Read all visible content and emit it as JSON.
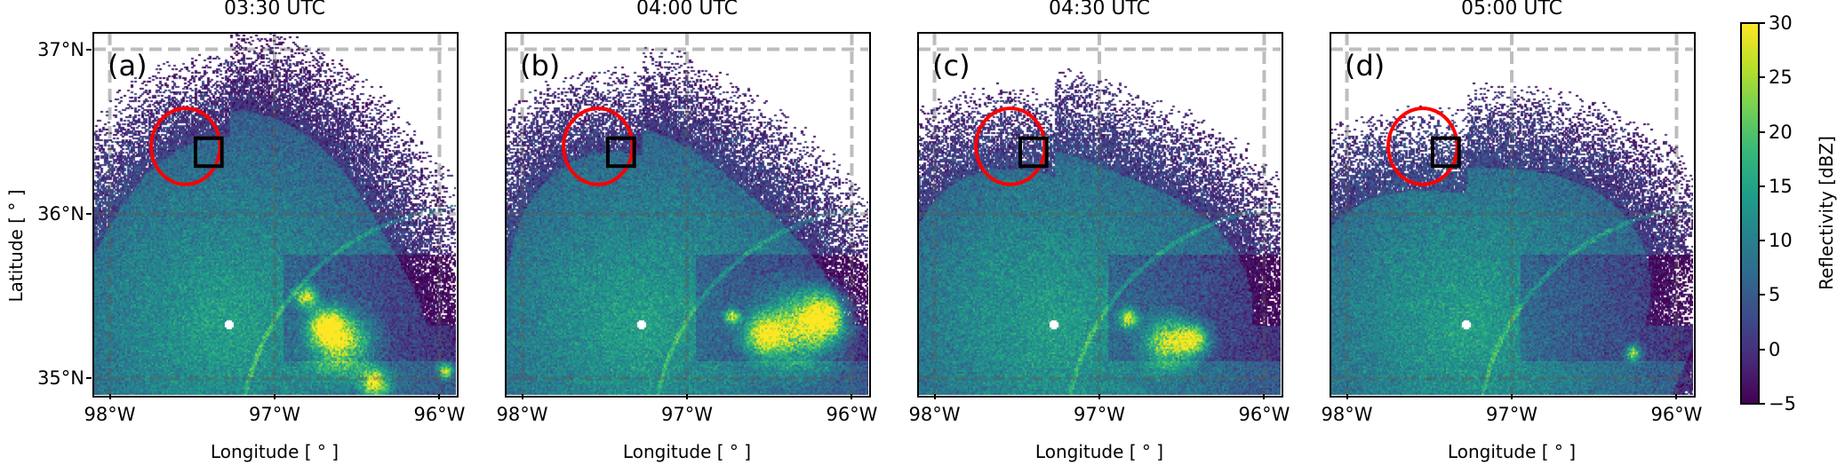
{
  "chart_data": {
    "type": "heatmap",
    "panels": [
      {
        "label": "(a)",
        "title": "03:30 UTC"
      },
      {
        "label": "(b)",
        "title": "04:00 UTC"
      },
      {
        "label": "(c)",
        "title": "04:30 UTC"
      },
      {
        "label": "(d)",
        "title": "05:00 UTC"
      }
    ],
    "xlabel": "Longitude [ ° ]",
    "ylabel": "Latitude [ ° ]",
    "xlim": [
      -98.1,
      -95.9
    ],
    "ylim": [
      34.9,
      37.1
    ],
    "x_ticks": [
      {
        "value": -98,
        "label": "98°W"
      },
      {
        "value": -97,
        "label": "97°W"
      },
      {
        "value": -96,
        "label": "96°W"
      }
    ],
    "y_ticks": [
      {
        "value": 37,
        "label": "37°N"
      },
      {
        "value": 36,
        "label": "36°N"
      },
      {
        "value": 35,
        "label": "35°N"
      }
    ],
    "grid": {
      "enabled": true,
      "style": "dashed",
      "color": "#a0a0a0"
    },
    "colorbar": {
      "label": "Reflectivity [dBZ]",
      "colormap": "viridis",
      "range": [
        -5,
        30
      ],
      "ticks": [
        {
          "value": 30,
          "label": "30"
        },
        {
          "value": 25,
          "label": "25"
        },
        {
          "value": 20,
          "label": "20"
        },
        {
          "value": 15,
          "label": "15"
        },
        {
          "value": 10,
          "label": "10"
        },
        {
          "value": 5,
          "label": "5"
        },
        {
          "value": 0,
          "label": "0"
        },
        {
          "value": -5,
          "label": "−5"
        }
      ]
    },
    "annotations": {
      "circle": {
        "lon": -97.54,
        "lat": 36.41,
        "radius_deg": 0.22,
        "color": "#ff0000"
      },
      "box": {
        "lon": [
          -97.48,
          -97.32
        ],
        "lat": [
          36.29,
          36.46
        ],
        "color": "#000000"
      }
    },
    "radar_site": {
      "lon": -97.28,
      "lat": 35.33,
      "color": "#ffffff"
    }
  }
}
